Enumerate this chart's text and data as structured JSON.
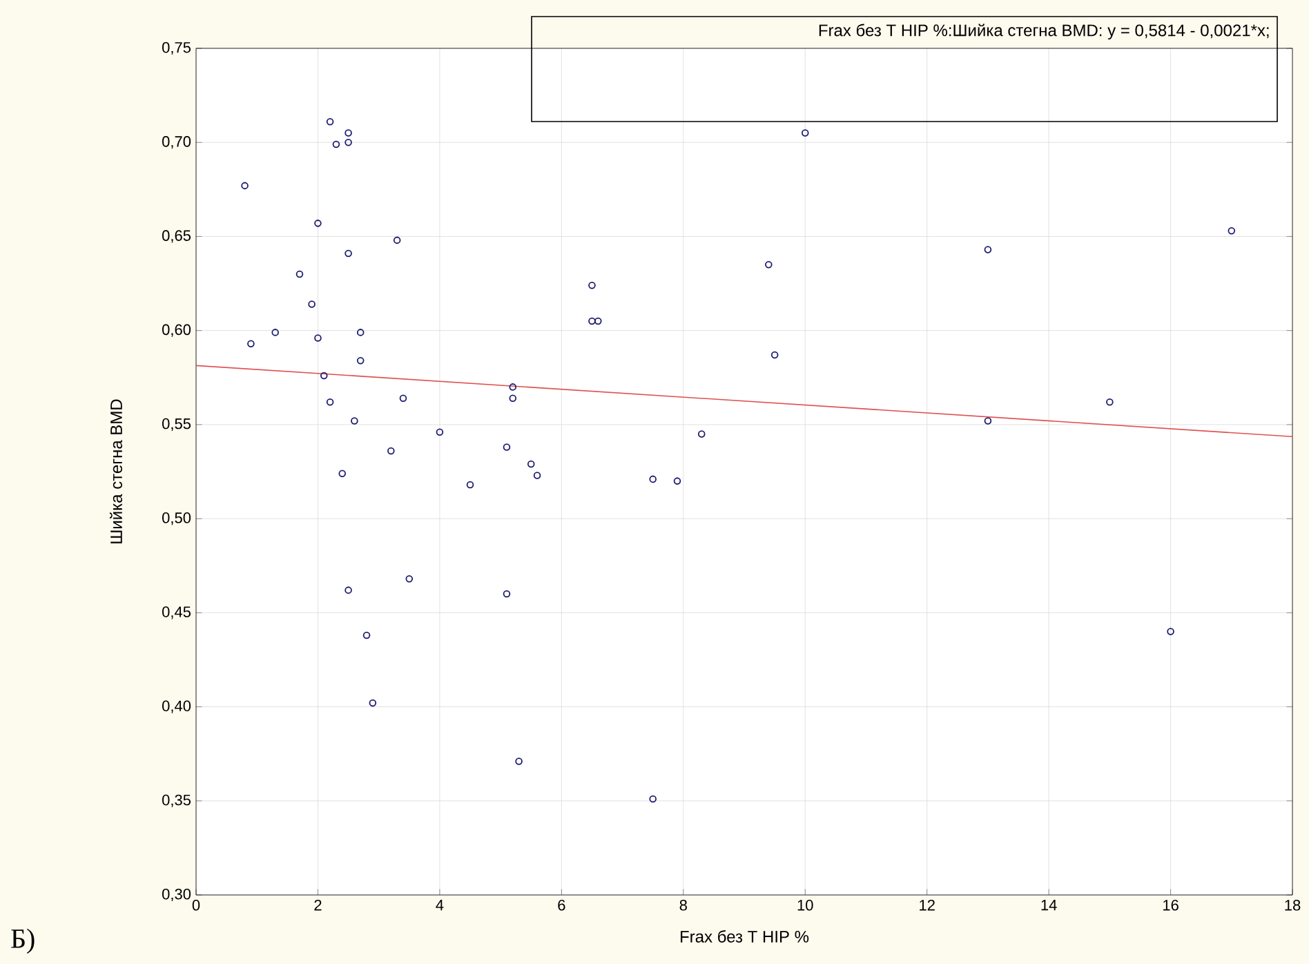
{
  "chart_data": {
    "type": "scatter",
    "xlabel": "Frax без T HIP %",
    "ylabel": "Шийка стегна BMD",
    "annotations": [
      "Frax без T HIP %:Шийка стегна BMD:   y = 0,5814 - 0,0021*x;",
      "Б)"
    ],
    "xlim": [
      0,
      18
    ],
    "ylim": [
      0.3,
      0.75
    ],
    "xticks": [
      0,
      2,
      4,
      6,
      8,
      10,
      12,
      14,
      16,
      18
    ],
    "yticks": [
      {
        "value": 0.3,
        "label": "0,30"
      },
      {
        "value": 0.35,
        "label": "0,35"
      },
      {
        "value": 0.4,
        "label": "0,40"
      },
      {
        "value": 0.45,
        "label": "0,45"
      },
      {
        "value": 0.5,
        "label": "0,50"
      },
      {
        "value": 0.55,
        "label": "0,55"
      },
      {
        "value": 0.6,
        "label": "0,60"
      },
      {
        "value": 0.65,
        "label": "0,65"
      },
      {
        "value": 0.7,
        "label": "0,70"
      },
      {
        "value": 0.75,
        "label": "0,75"
      }
    ],
    "grid": true,
    "series": [
      {
        "marker": "circle",
        "color": "#1c1c70",
        "x": [
          0.8,
          0.9,
          1.3,
          1.7,
          1.9,
          2.0,
          2.0,
          2.1,
          2.2,
          2.2,
          2.3,
          2.5,
          2.5,
          2.5,
          2.4,
          2.6,
          2.7,
          2.7,
          2.5,
          2.8,
          2.9,
          3.2,
          3.3,
          3.4,
          3.5,
          4.0,
          4.5,
          5.1,
          5.1,
          5.2,
          5.2,
          5.3,
          5.5,
          5.6,
          6.5,
          6.5,
          6.6,
          7.5,
          7.5,
          7.9,
          8.3,
          9.4,
          9.5,
          10.0,
          13,
          13,
          15,
          16,
          17
        ],
        "values": [
          0.677,
          0.593,
          0.599,
          0.63,
          0.614,
          0.657,
          0.596,
          0.576,
          0.562,
          0.711,
          0.699,
          0.705,
          0.7,
          0.641,
          0.524,
          0.552,
          0.599,
          0.584,
          0.462,
          0.438,
          0.402,
          0.536,
          0.648,
          0.564,
          0.468,
          0.546,
          0.518,
          0.538,
          0.46,
          0.57,
          0.564,
          0.371,
          0.529,
          0.523,
          0.624,
          0.605,
          0.605,
          0.521,
          0.351,
          0.52,
          0.545,
          0.635,
          0.587,
          0.705,
          0.643,
          0.552,
          0.562,
          0.44,
          0.653
        ]
      },
      {
        "type": "line",
        "color": "#e05050",
        "x": [
          0,
          18
        ],
        "values": [
          0.5814,
          0.5436
        ]
      }
    ]
  }
}
